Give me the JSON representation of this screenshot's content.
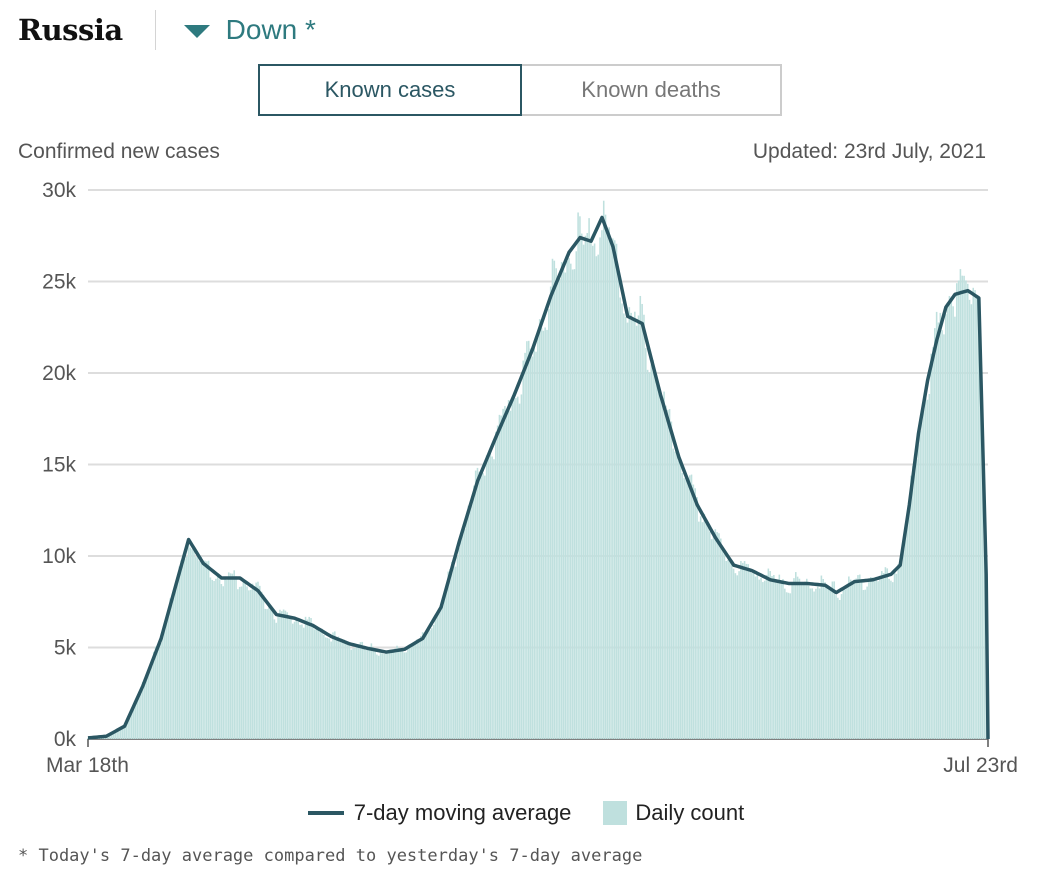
{
  "header": {
    "country": "Russia",
    "trend": "Down *"
  },
  "tabs": [
    {
      "label": "Known cases",
      "active": true
    },
    {
      "label": "Known deaths",
      "active": false
    }
  ],
  "subtitle_left": "Confirmed new cases",
  "updated": "Updated: 23rd July, 2021",
  "legend": {
    "line_label": "7-day moving average",
    "bar_label": "Daily count"
  },
  "footnote": "* Today's 7-day average compared to yesterday's 7-day average",
  "colors": {
    "line": "#2b5763",
    "bars": "#bfe0de",
    "trend": "#2e7a7f",
    "grid": "#dddddd"
  },
  "chart_data": {
    "type": "bar",
    "x_start": "2020-03-18",
    "x_end": "2021-07-23",
    "xtick_labels": [
      "Mar 18th",
      "Jul 23rd"
    ],
    "ylim": [
      0,
      30000
    ],
    "yticks": [
      0,
      5000,
      10000,
      15000,
      20000,
      25000,
      30000
    ],
    "ytick_labels": [
      "0k",
      "5k",
      "10k",
      "15k",
      "20k",
      "25k",
      "30k"
    ],
    "grid": true,
    "series": [
      {
        "name": "7-day moving average",
        "kind": "line",
        "points": [
          [
            "2020-03-18",
            60
          ],
          [
            "2020-03-28",
            150
          ],
          [
            "2020-04-07",
            700
          ],
          [
            "2020-04-17",
            2900
          ],
          [
            "2020-04-27",
            5500
          ],
          [
            "2020-05-05",
            8400
          ],
          [
            "2020-05-12",
            10900
          ],
          [
            "2020-05-20",
            9600
          ],
          [
            "2020-05-30",
            8800
          ],
          [
            "2020-06-09",
            8800
          ],
          [
            "2020-06-19",
            8100
          ],
          [
            "2020-06-29",
            6800
          ],
          [
            "2020-07-09",
            6600
          ],
          [
            "2020-07-19",
            6200
          ],
          [
            "2020-07-29",
            5600
          ],
          [
            "2020-08-08",
            5200
          ],
          [
            "2020-08-18",
            4950
          ],
          [
            "2020-08-28",
            4750
          ],
          [
            "2020-09-07",
            4900
          ],
          [
            "2020-09-17",
            5500
          ],
          [
            "2020-09-27",
            7200
          ],
          [
            "2020-10-07",
            10800
          ],
          [
            "2020-10-17",
            14100
          ],
          [
            "2020-10-27",
            16500
          ],
          [
            "2020-11-06",
            18800
          ],
          [
            "2020-11-16",
            21300
          ],
          [
            "2020-11-26",
            24200
          ],
          [
            "2020-12-06",
            26600
          ],
          [
            "2020-12-12",
            27400
          ],
          [
            "2020-12-18",
            27200
          ],
          [
            "2020-12-24",
            28500
          ],
          [
            "2020-12-30",
            26900
          ],
          [
            "2021-01-07",
            23100
          ],
          [
            "2021-01-15",
            22700
          ],
          [
            "2021-01-25",
            18800
          ],
          [
            "2021-02-04",
            15400
          ],
          [
            "2021-02-14",
            12800
          ],
          [
            "2021-02-24",
            11000
          ],
          [
            "2021-03-06",
            9500
          ],
          [
            "2021-03-16",
            9200
          ],
          [
            "2021-03-26",
            8700
          ],
          [
            "2021-04-05",
            8500
          ],
          [
            "2021-04-15",
            8500
          ],
          [
            "2021-04-25",
            8400
          ],
          [
            "2021-05-01",
            8000
          ],
          [
            "2021-05-11",
            8600
          ],
          [
            "2021-05-21",
            8700
          ],
          [
            "2021-05-31",
            9000
          ],
          [
            "2021-06-05",
            9500
          ],
          [
            "2021-06-10",
            12800
          ],
          [
            "2021-06-15",
            16700
          ],
          [
            "2021-06-20",
            19600
          ],
          [
            "2021-06-25",
            21800
          ],
          [
            "2021-06-30",
            23600
          ],
          [
            "2021-07-05",
            24300
          ],
          [
            "2021-07-12",
            24500
          ],
          [
            "2021-07-18",
            24100
          ],
          [
            "2021-07-22",
            9000
          ],
          [
            "2021-07-23",
            0
          ]
        ]
      },
      {
        "name": "Daily count",
        "kind": "bar",
        "values": "daily counts fluctuating around the 7-day moving average"
      }
    ]
  }
}
